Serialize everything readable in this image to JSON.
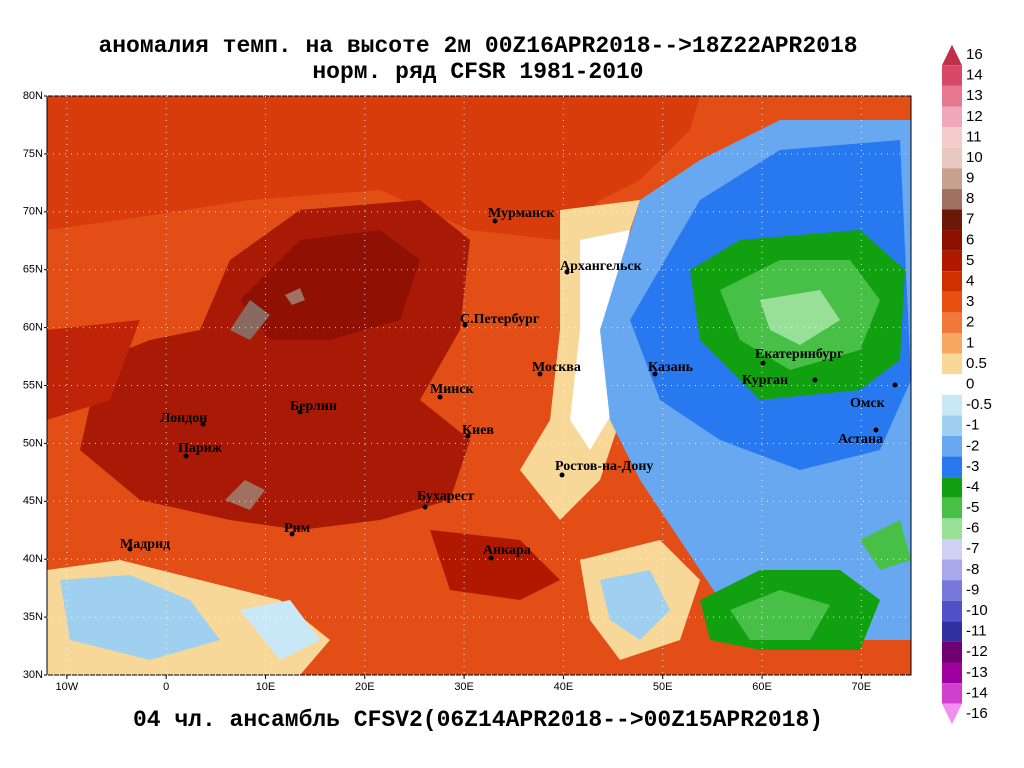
{
  "map": {
    "title": "аномалия темп. на высоте 2м 00Z16APR2018-->18Z22APR2018",
    "subtitle": "норм. ряд CFSR 1981-2010",
    "footer": "04 чл. ансамбль CFSV2(06Z14APR2018-->00Z15APR2018)",
    "xlim": [
      -12,
      75
    ],
    "ylim": [
      30,
      80
    ],
    "xticks": [
      {
        "value": -10,
        "label": "10W"
      },
      0,
      {
        "value": 10,
        "label": "10E"
      },
      {
        "value": 20,
        "label": "20E"
      },
      {
        "value": 30,
        "label": "30E"
      },
      {
        "value": 40,
        "label": "40E"
      },
      {
        "value": 50,
        "label": "50E"
      },
      {
        "value": 60,
        "label": "60E"
      },
      {
        "value": 70,
        "label": "70E"
      }
    ],
    "yticks": [
      {
        "value": 30,
        "label": "30N"
      },
      {
        "value": 35,
        "label": "35N"
      },
      {
        "value": 40,
        "label": "40N"
      },
      {
        "value": 45,
        "label": "45N"
      },
      {
        "value": 50,
        "label": "50N"
      },
      {
        "value": 55,
        "label": "55N"
      },
      {
        "value": 60,
        "label": "60N"
      },
      {
        "value": 65,
        "label": "65N"
      },
      {
        "value": 70,
        "label": "70N"
      },
      {
        "value": 75,
        "label": "75N"
      },
      {
        "value": 80,
        "label": "80N"
      }
    ],
    "grid": true,
    "colorbar": {
      "levels": [
        16,
        14,
        13,
        12,
        11,
        10,
        9,
        8,
        7,
        6,
        5,
        4,
        3,
        2,
        1,
        0.5,
        0,
        -0.5,
        -1,
        -2,
        -3,
        -4,
        -5,
        -6,
        -7,
        -8,
        -9,
        -10,
        -11,
        -12,
        -13,
        -14,
        -16
      ],
      "colors": [
        "#c03048",
        "#d84868",
        "#e87890",
        "#f0a8b8",
        "#f4cccc",
        "#e8c8c0",
        "#c8a090",
        "#a07060",
        "#6a1808",
        "#8c1000",
        "#b01800",
        "#d03000",
        "#e85010",
        "#f07838",
        "#f8a860",
        "#f8d898",
        "#ffffff",
        "#c8e8f8",
        "#a0d0f0",
        "#68a8f0",
        "#2878f0",
        "#10a010",
        "#48c048",
        "#98e098",
        "#d0d0f4",
        "#a8a8ec",
        "#7878dc",
        "#5050c8",
        "#3030a0",
        "#700070",
        "#a000a0",
        "#d040d0",
        "#f090f0"
      ]
    },
    "cities": [
      "Мурманск",
      "Архангельск",
      "С.Петербург",
      "Москва",
      "Казань",
      "Екатеринбург",
      "Курган",
      "Омск",
      "Астана",
      "Минск",
      "Киев",
      "Берлин",
      "Лондон",
      "Париж",
      "Ростов-на-Дону",
      "Бухарест",
      "Рим",
      "Мадрид",
      "Анкара"
    ]
  }
}
